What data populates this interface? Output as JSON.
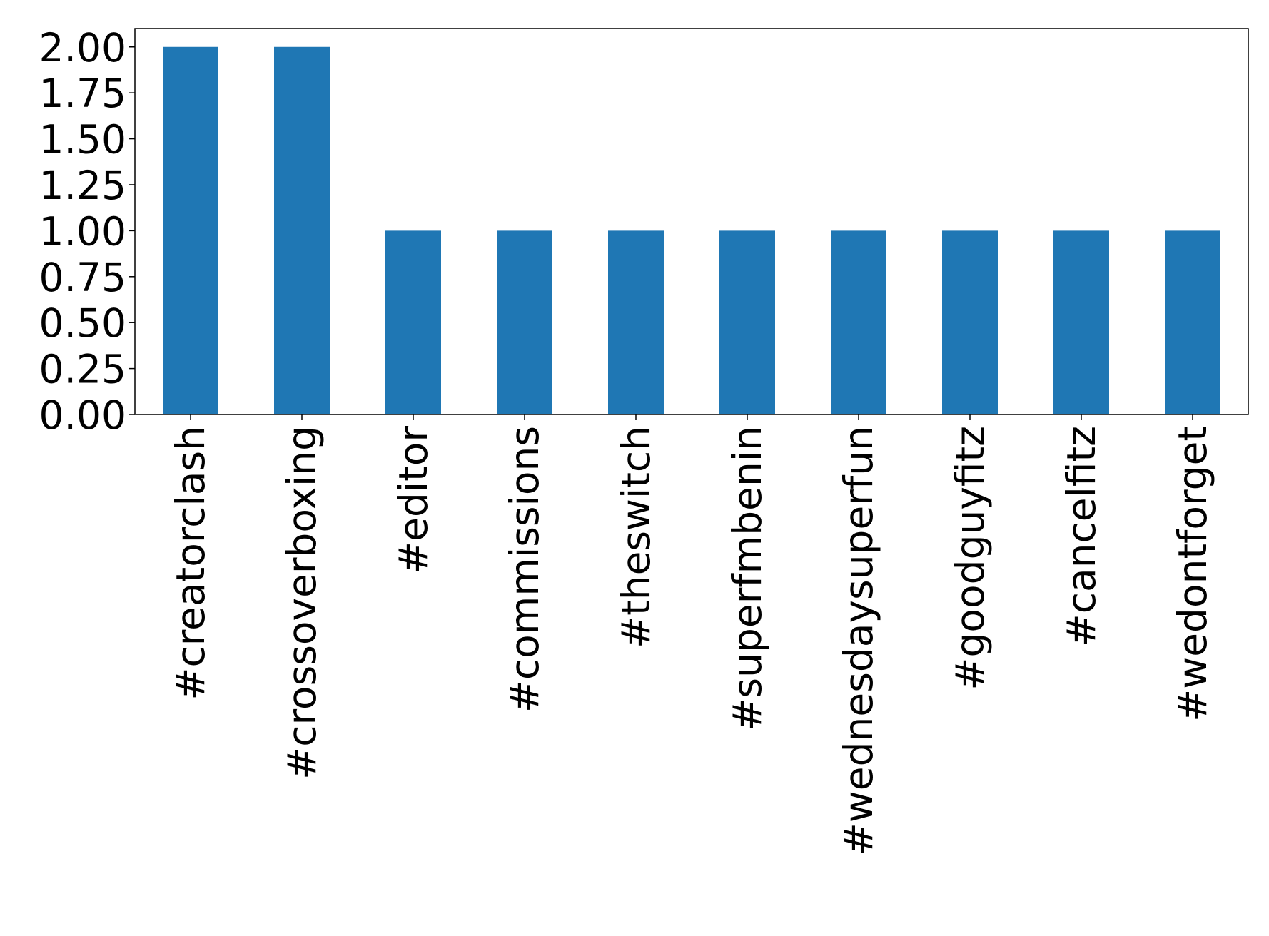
{
  "chart_data": {
    "type": "bar",
    "categories": [
      "#creatorclash",
      "#crossoverboxing",
      "#editor",
      "#commissions",
      "#theswitch",
      "#superfmbenin",
      "#wednesdaysuperfun",
      "#goodguyfitz",
      "#cancelfitz",
      "#wedontforget"
    ],
    "values": [
      2,
      2,
      1,
      1,
      1,
      1,
      1,
      1,
      1,
      1
    ],
    "color": "#1f77b4",
    "ylim": [
      0,
      2.1
    ],
    "yticks": [
      {
        "value": 0,
        "label": "0.00"
      },
      {
        "value": 0.25,
        "label": "0.25"
      },
      {
        "value": 0.5,
        "label": "0.50"
      },
      {
        "value": 0.75,
        "label": "0.75"
      },
      {
        "value": 1,
        "label": "1.00"
      },
      {
        "value": 1.25,
        "label": "1.25"
      },
      {
        "value": 1.5,
        "label": "1.50"
      },
      {
        "value": 1.75,
        "label": "1.75"
      },
      {
        "value": 2,
        "label": "2.00"
      }
    ],
    "grid": false
  }
}
